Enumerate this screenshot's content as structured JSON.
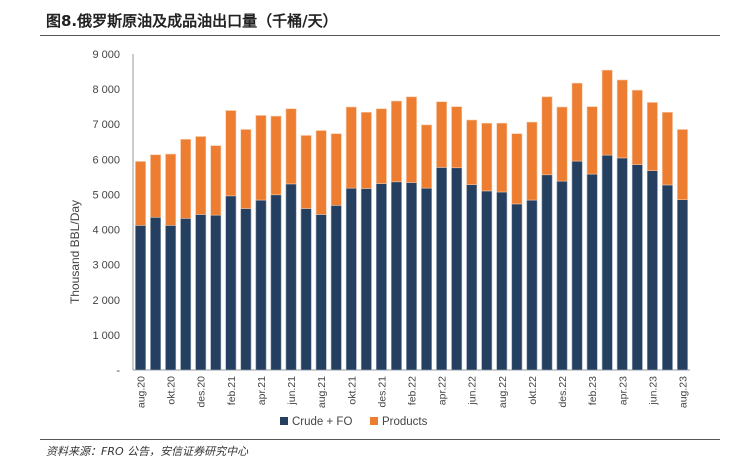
{
  "title": "图8.俄罗斯原油及成品油出口量（千桶/天）",
  "source": "资料来源：FRO 公告，安信证券研究中心",
  "chart_data": {
    "type": "bar",
    "stacked": true,
    "title": "图8.俄罗斯原油及成品油出口量（千桶/天）",
    "ylabel": "Thousand BBL/Day",
    "xlabel": "",
    "ylim": [
      0,
      9000
    ],
    "yticks": [
      0,
      1000,
      2000,
      3000,
      4000,
      5000,
      6000,
      7000,
      8000,
      9000
    ],
    "ytick_labels": [
      "-",
      "1 000",
      "2 000",
      "3 000",
      "4 000",
      "5 000",
      "6 000",
      "7 000",
      "8 000",
      "9 000"
    ],
    "categories": [
      "aug.20",
      "sep.20",
      "okt.20",
      "nov.20",
      "des.20",
      "jan.21",
      "feb.21",
      "mar.21",
      "apr.21",
      "mai.21",
      "jun.21",
      "jul.21",
      "aug.21",
      "sep.21",
      "okt.21",
      "nov.21",
      "des.21",
      "jan.22",
      "feb.22",
      "mar.22",
      "apr.22",
      "mai.22",
      "jun.22",
      "jul.22",
      "aug.22",
      "sep.22",
      "okt.22",
      "nov.22",
      "des.22",
      "jan.23",
      "feb.23",
      "mar.23",
      "apr.23",
      "mai.23",
      "jun.23",
      "jul.23",
      "aug.23"
    ],
    "xtick_labels": [
      "aug.20",
      "okt.20",
      "des.20",
      "feb.21",
      "apr.21",
      "jun.21",
      "aug.21",
      "okt.21",
      "des.21",
      "feb.22",
      "apr.22",
      "jun.22",
      "aug.22",
      "okt.22",
      "des.22",
      "feb.23",
      "apr.23",
      "jun.23",
      "aug.23"
    ],
    "series": [
      {
        "name": "Crude + FO",
        "color": "#243F60",
        "values": [
          4120,
          4350,
          4120,
          4320,
          4430,
          4410,
          4960,
          4600,
          4840,
          4990,
          5300,
          4600,
          4430,
          4690,
          5180,
          5170,
          5310,
          5360,
          5340,
          5180,
          5770,
          5760,
          5280,
          5100,
          5070,
          4730,
          4840,
          5560,
          5380,
          5950,
          5580,
          6120,
          6040,
          5850,
          5680,
          5270,
          4850
        ]
      },
      {
        "name": "Products",
        "color": "#ED7D31",
        "values": [
          1820,
          1780,
          2030,
          2250,
          2220,
          1980,
          2430,
          2250,
          2410,
          2240,
          2140,
          2080,
          2390,
          2040,
          2310,
          2170,
          2130,
          2300,
          2440,
          1800,
          1870,
          1740,
          1840,
          1930,
          1960,
          2000,
          2220,
          2220,
          2110,
          2220,
          1920,
          2420,
          2220,
          2120,
          1940,
          2070,
          2000
        ]
      }
    ],
    "legend": "bottom",
    "grid": false
  }
}
